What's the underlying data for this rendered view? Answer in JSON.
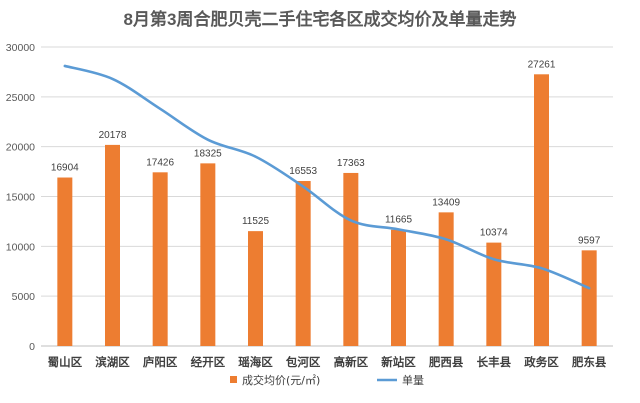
{
  "chart_data": {
    "type": "bar",
    "title": "8月第3周合肥贝壳二手住宅各区成交均价及单量走势",
    "xlabel": "",
    "ylabel": "",
    "ylim": [
      0,
      30000
    ],
    "yticks": [
      0,
      5000,
      10000,
      15000,
      20000,
      25000,
      30000
    ],
    "grid": true,
    "legend_position": "bottom",
    "categories": [
      "蜀山区",
      "滨湖区",
      "庐阳区",
      "经开区",
      "瑶海区",
      "包河区",
      "高新区",
      "新站区",
      "肥西县",
      "长丰县",
      "政务区",
      "肥东县"
    ],
    "series": [
      {
        "name": "成交均价(元/㎡)",
        "type": "bar",
        "color": "#ED7D31",
        "values": [
          16904,
          20178,
          17426,
          18325,
          11525,
          16553,
          17363,
          11665,
          13409,
          10374,
          27261,
          9597
        ],
        "show_labels": true
      },
      {
        "name": "单量",
        "type": "line",
        "color": "#5B9BD5",
        "smooth": true,
        "values": [
          28100,
          26800,
          23800,
          20700,
          19000,
          16000,
          12600,
          11700,
          10700,
          8700,
          7800,
          5800
        ]
      }
    ]
  }
}
